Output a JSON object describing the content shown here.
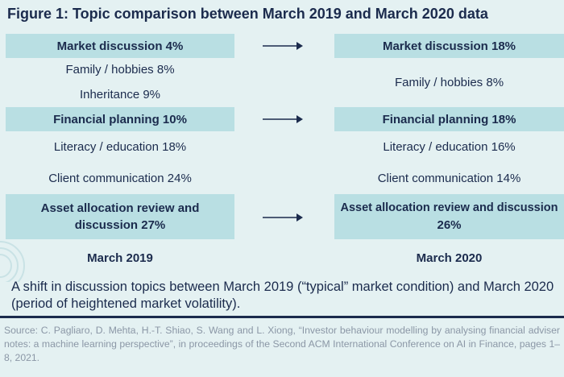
{
  "title": "Figure 1: Topic comparison between March 2019 and March 2020 data",
  "left": {
    "market": "Market discussion 4%",
    "family": "Family / hobbies 8%",
    "inheritance": "Inheritance 9%",
    "financial": "Financial planning  10%",
    "literacy": "Literacy / education 18%",
    "client": "Client communication 24%",
    "asset_line1": "Asset allocation review and",
    "asset_line2": "discussion 27%",
    "label": "March 2019"
  },
  "right": {
    "market": "Market discussion 18%",
    "family": "Family / hobbies 8%",
    "financial": "Financial planning  18%",
    "literacy": "Literacy / education 16%",
    "client": "Client communication 14%",
    "asset_line1": "Asset allocation review and discussion",
    "asset_line2": "26%",
    "label": "March 2020"
  },
  "caption": "A shift in discussion topics between March 2019 (“typical” market condition) and March 2020 (period of heightened market volatility).",
  "source": "Source: C. Pagliaro, D. Mehta, H.-T. Shiao, S. Wang and L. Xiong, “Investor behaviour modelling by analysing financial adviser notes: a machine learning perspective”, in proceedings of the Second ACM International Conference on AI in Finance, pages 1–8, 2021.",
  "colors": {
    "background": "#e4f1f2",
    "highlight": "#b9dfe3",
    "text": "#1b2b4d",
    "source": "#8b97a6"
  }
}
